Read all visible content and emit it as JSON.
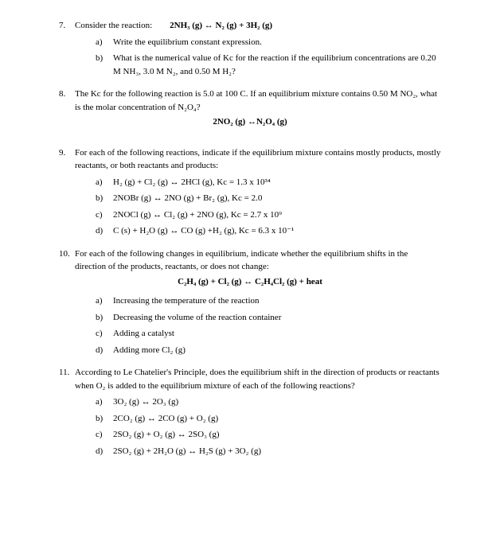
{
  "q7": {
    "num": "7.",
    "intro": "Consider the reaction:",
    "equation": "2NH₃ (g) ↔ N₂ (g) + 3H₂ (g)",
    "a": {
      "letter": "a)",
      "text": "Write the equilibrium constant expression."
    },
    "b": {
      "letter": "b)",
      "text": "What is the numerical value of Kc for the reaction if the equilibrium concentrations are 0.20 M NH₃, 3.0 M N₂, and 0.50 M H₂?"
    }
  },
  "q8": {
    "num": "8.",
    "text": "The Kc for the following reaction is 5.0 at 100 C. If an equilibrium mixture contains 0.50 M NO₂, what is the molar concentration of N₂O₄?",
    "equation": "2NO₂ (g) ↔N₂O₄ (g)"
  },
  "q9": {
    "num": "9.",
    "text": "For each of the following reactions, indicate if the equilibrium mixture contains mostly products, mostly reactants, or both reactants and products:",
    "a": {
      "letter": "a)",
      "text": "H₂ (g) + Cl₂ (g) ↔ 2HCl (g),  Kc = 1.3 x 10³⁴"
    },
    "b": {
      "letter": "b)",
      "text": "2NOBr (g) ↔ 2NO (g) + Br₂ (g),  Kc = 2.0"
    },
    "c": {
      "letter": "c)",
      "text": "2NOCl (g) ↔ Cl₂ (g) + 2NO (g),  Kc = 2.7 x 10⁹"
    },
    "d": {
      "letter": "d)",
      "text": "C (s) + H₂O (g) ↔ CO (g) +H₂ (g),  Kc = 6.3 x 10⁻¹"
    }
  },
  "q10": {
    "num": "10.",
    "text": "For each of the following changes in equilibrium, indicate whether the equilibrium shifts in the direction of the products, reactants, or does not change:",
    "equation": "C₂H₄ (g) + Cl₂ (g) ↔ C₂H₄Cl₂ (g) + heat",
    "a": {
      "letter": "a)",
      "text": "Increasing the temperature of the reaction"
    },
    "b": {
      "letter": "b)",
      "text": "Decreasing the volume of the reaction container"
    },
    "c": {
      "letter": "c)",
      "text": "Adding a catalyst"
    },
    "d": {
      "letter": "d)",
      "text": "Adding more Cl₂ (g)"
    }
  },
  "q11": {
    "num": "11.",
    "text": "According to Le Chatelier's Principle, does the equilibrium shift in the direction of products or reactants when O₂ is added to the equilibrium mixture of each of the following reactions?",
    "a": {
      "letter": "a)",
      "text": "3O₂ (g) ↔ 2O₃ (g)"
    },
    "b": {
      "letter": "b)",
      "text": "2CO₂ (g) ↔ 2CO (g) + O₂ (g)"
    },
    "c": {
      "letter": "c)",
      "text": "2SO₂ (g) + O₂ (g) ↔ 2SO₃ (g)"
    },
    "d": {
      "letter": "d)",
      "text": "2SO₂ (g) + 2H₂O (g) ↔ H₂S (g) + 3O₂ (g)"
    }
  }
}
